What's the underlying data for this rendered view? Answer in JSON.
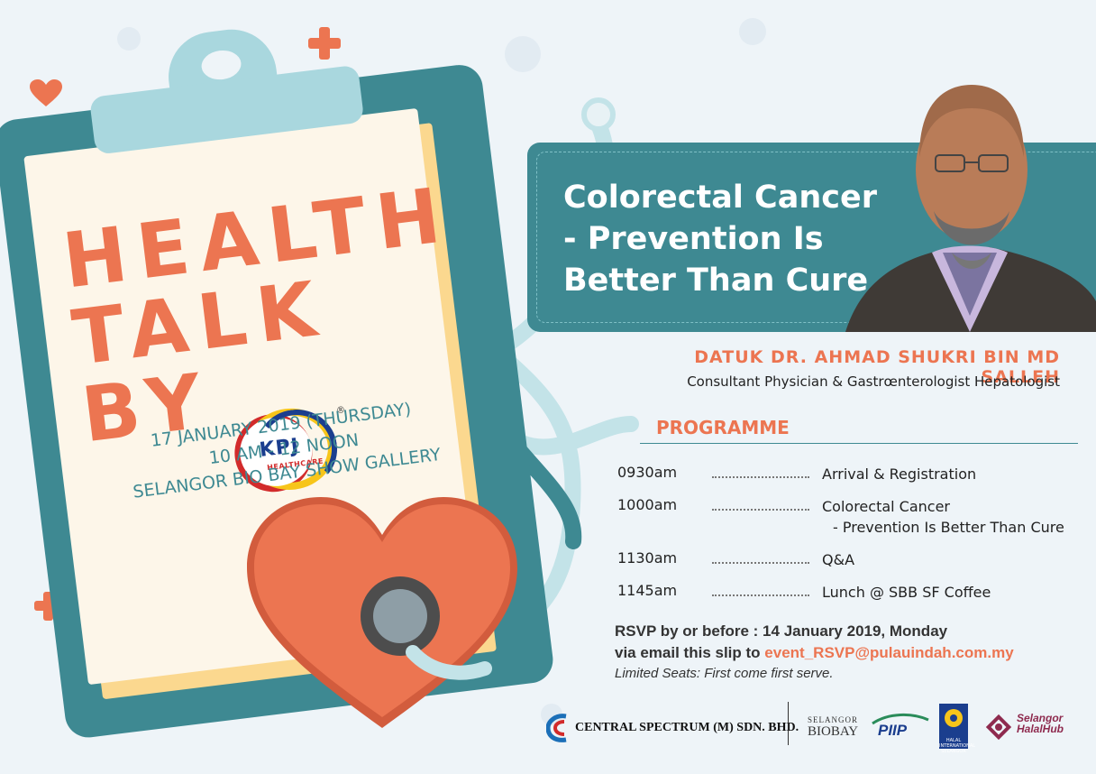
{
  "headline": {
    "line1": "HEALTH",
    "line2": "TALK BY"
  },
  "kpj": {
    "name": "KPJ",
    "sub": "HEALTHCARE",
    "reg": "®"
  },
  "event": {
    "date": "17 JANUARY 2019 (THURSDAY)",
    "time": "10 AM - 12 NOON",
    "venue": "SELANGOR BIO BAY SHOW GALLERY"
  },
  "talk": {
    "line1": "Colorectal Cancer",
    "line2": "- Prevention Is",
    "line3": "Better Than Cure"
  },
  "speaker": {
    "name": "DATUK DR. AHMAD SHUKRI BIN MD SALLEH",
    "role": "Consultant Physician & Gastrœnterologist Hepatologist"
  },
  "programme": {
    "title": "PROGRAMME",
    "items": [
      {
        "time": "0930am",
        "desc": "Arrival & Registration",
        "desc2": ""
      },
      {
        "time": "1000am",
        "desc": "Colorectal Cancer",
        "desc2": "- Prevention Is Better Than Cure"
      },
      {
        "time": "1130am",
        "desc": "Q&A",
        "desc2": ""
      },
      {
        "time": "1145am",
        "desc": "Lunch @ SBB SF Coffee",
        "desc2": ""
      }
    ]
  },
  "rsvp": {
    "line1": "RSVP by or before : 14 January 2019, Monday",
    "line2_prefix": "via email this slip to",
    "email": "event_RSVP@pulauindah.com.my",
    "seats": "Limited Seats: First come first serve."
  },
  "footer": {
    "central_spectrum": "CENTRAL SPECTRUM (M) SDN. BHD.",
    "sbb_top": "SELANGOR",
    "sbb_bottom": "BIOBAY",
    "piip": "PIIP",
    "halal_int": "HALAL INTERNATIONAL SELANGOR",
    "halal_hub_top": "Selangor",
    "halal_hub_bottom": "HalalHub"
  },
  "colors": {
    "accent": "#ec7551",
    "teal": "#3e8992",
    "paper": "#fdf6e9",
    "background": "#eef4f8"
  }
}
